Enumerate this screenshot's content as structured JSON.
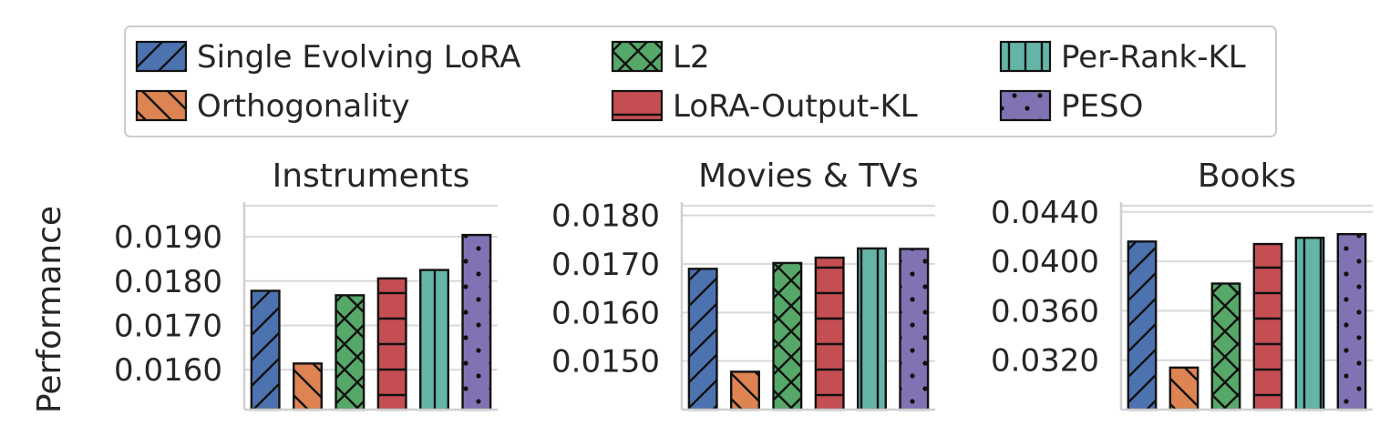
{
  "legend": {
    "entries": [
      {
        "name": "Single Evolving LoRA",
        "color": "#4c72b0",
        "hatch": "diag-right"
      },
      {
        "name": "Orthogonality",
        "color": "#dd8452",
        "hatch": "diag-left"
      },
      {
        "name": "L2",
        "color": "#55a868",
        "hatch": "cross"
      },
      {
        "name": "LoRA-Output-KL",
        "color": "#c44e52",
        "hatch": "horizontal"
      },
      {
        "name": "Per-Rank-KL",
        "color": "#64b5a8",
        "hatch": "vertical"
      },
      {
        "name": "PESO",
        "color": "#8172b3",
        "hatch": "dots"
      }
    ],
    "placement": "top-center"
  },
  "shared_ylabel": "Performance",
  "chart_data": [
    {
      "type": "bar",
      "title": "Instruments",
      "categories": [
        "Single Evolving LoRA",
        "Orthogonality",
        "L2",
        "LoRA-Output-KL",
        "Per-Rank-KL",
        "PESO"
      ],
      "values": [
        0.01778,
        0.01614,
        0.01768,
        0.01806,
        0.01825,
        0.01904
      ],
      "ylim": [
        0.0151,
        0.0197
      ],
      "yticks": [
        0.016,
        0.017,
        0.018,
        0.019
      ],
      "ytick_labels": [
        "0.0160",
        "0.0170",
        "0.0180",
        "0.0190"
      ],
      "grid": true,
      "xlabel": "",
      "ylabel": "Performance"
    },
    {
      "type": "bar",
      "title": "Movies & TVs",
      "categories": [
        "Single Evolving LoRA",
        "Orthogonality",
        "L2",
        "LoRA-Output-KL",
        "Per-Rank-KL",
        "PESO"
      ],
      "values": [
        0.0169,
        0.01478,
        0.01702,
        0.01713,
        0.01732,
        0.01731
      ],
      "ylim": [
        0.014,
        0.0182
      ],
      "yticks": [
        0.015,
        0.016,
        0.017,
        0.018
      ],
      "ytick_labels": [
        "0.0150",
        "0.0160",
        "0.0170",
        "0.0180"
      ],
      "grid": true,
      "xlabel": "",
      "ylabel": ""
    },
    {
      "type": "bar",
      "title": "Books",
      "categories": [
        "Single Evolving LoRA",
        "Orthogonality",
        "L2",
        "LoRA-Output-KL",
        "Per-Rank-KL",
        "PESO"
      ],
      "values": [
        0.0416,
        0.0314,
        0.0382,
        0.0414,
        0.0419,
        0.0422
      ],
      "ylim": [
        0.028,
        0.0445
      ],
      "yticks": [
        0.032,
        0.036,
        0.04,
        0.044
      ],
      "ytick_labels": [
        "0.0320",
        "0.0360",
        "0.0400",
        "0.0440"
      ],
      "grid": true,
      "xlabel": "",
      "ylabel": ""
    }
  ]
}
